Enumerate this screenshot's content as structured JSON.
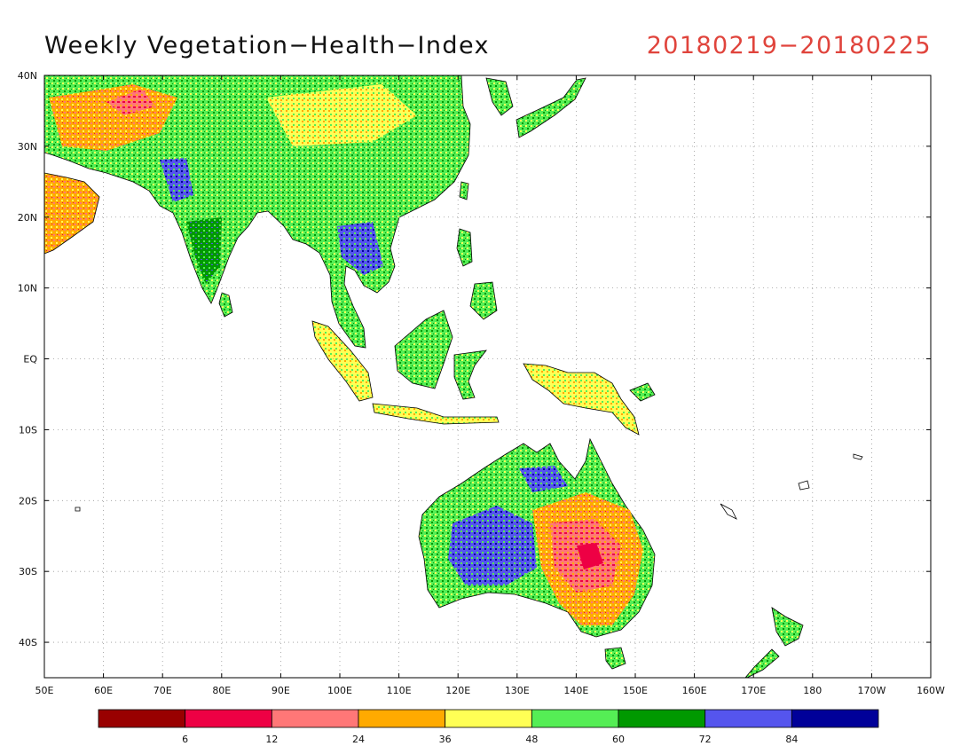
{
  "title": "Weekly Vegetation−Health−Index",
  "date_range": "20180219−20180225",
  "axes": {
    "lat_labels": [
      "40N",
      "30N",
      "20N",
      "10N",
      "EQ",
      "10S",
      "20S",
      "30S",
      "40S"
    ],
    "lon_labels": [
      "50E",
      "60E",
      "70E",
      "80E",
      "90E",
      "100E",
      "110E",
      "120E",
      "130E",
      "140E",
      "150E",
      "160E",
      "170E",
      "180",
      "170W",
      "160W"
    ],
    "lat_range": [
      -45,
      40
    ],
    "lon_range": [
      50,
      200
    ],
    "grid": true
  },
  "colorbar": {
    "colors": [
      "#990000",
      "#ee0044",
      "#ff7777",
      "#ffaa00",
      "#ffff55",
      "#55ee55",
      "#009900",
      "#5555ee",
      "#000099"
    ],
    "labels": [
      "6",
      "12",
      "24",
      "36",
      "48",
      "60",
      "72",
      "84"
    ]
  }
}
